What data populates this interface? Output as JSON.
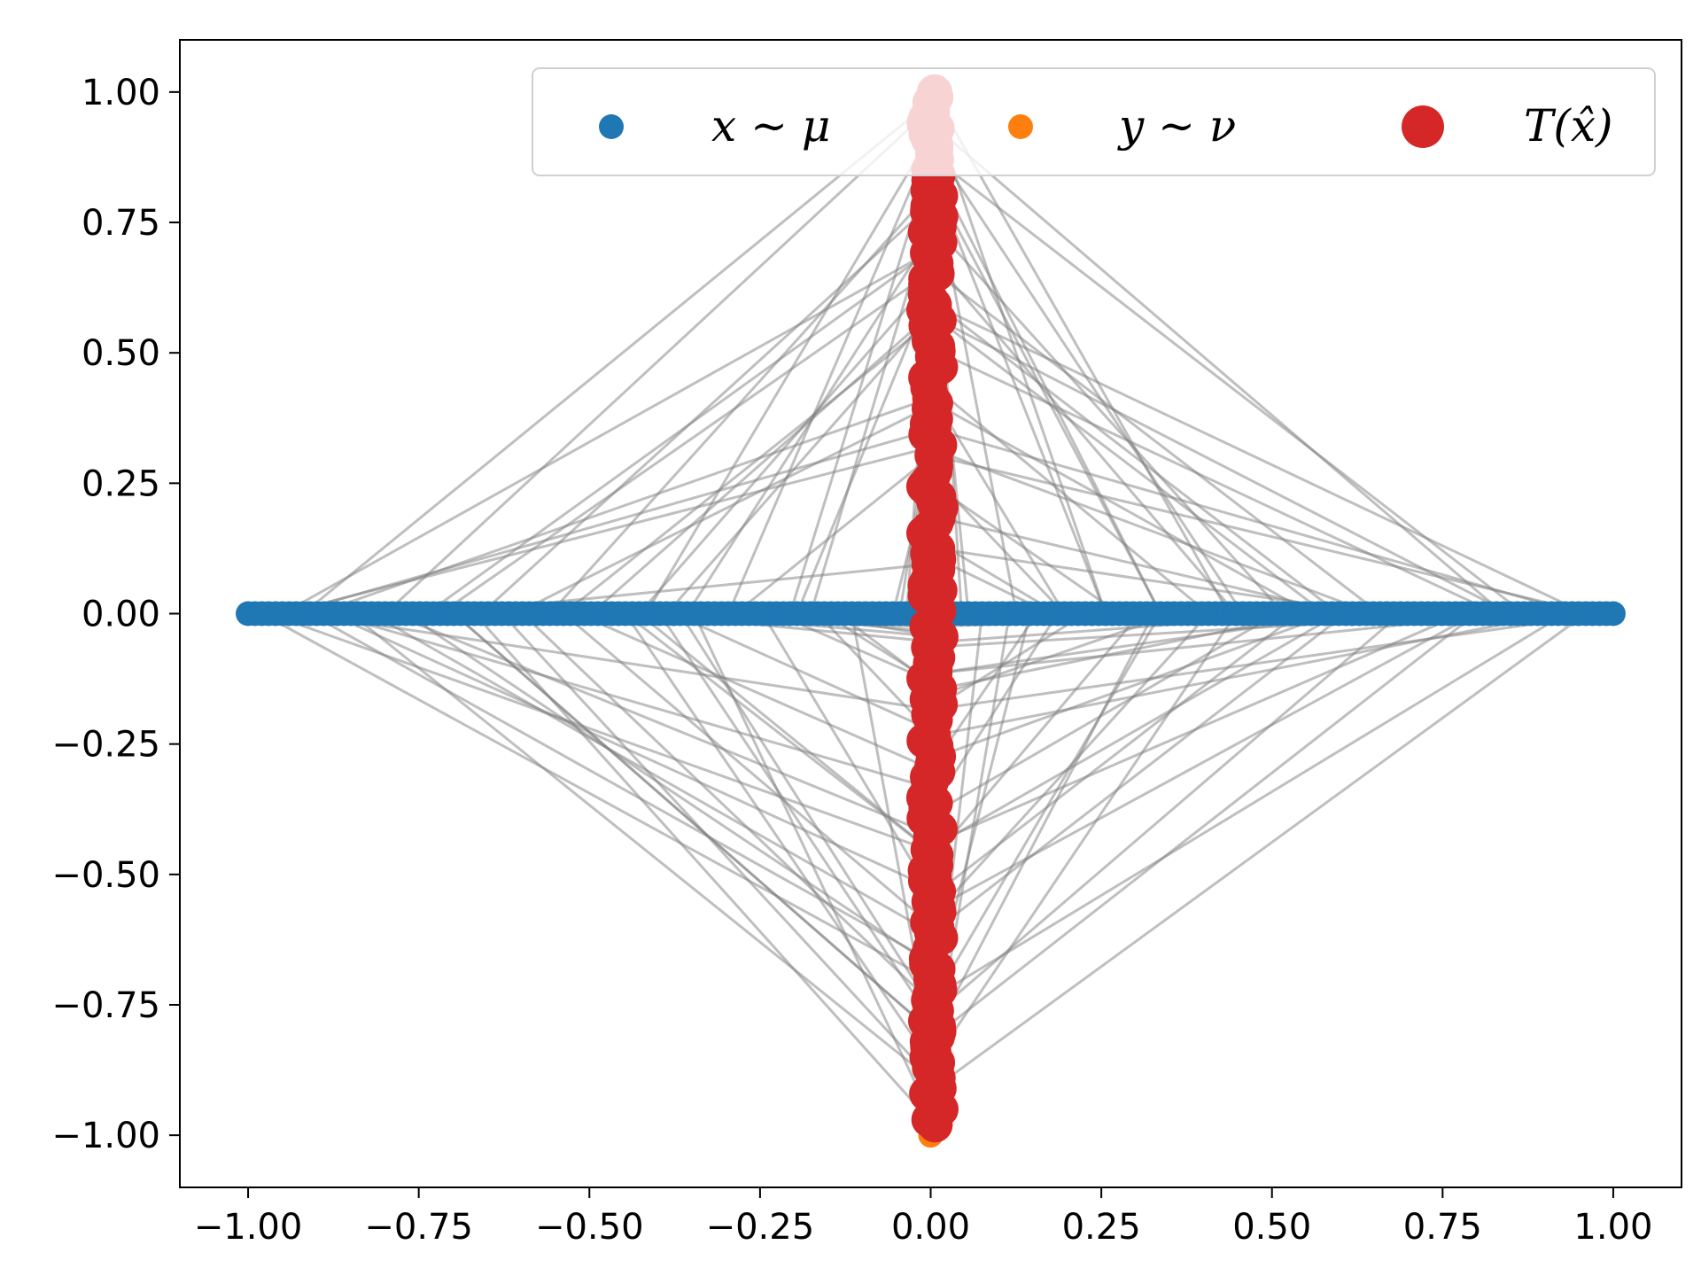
{
  "chart_data": {
    "type": "scatter",
    "xlim": [
      -1.1,
      1.1
    ],
    "ylim": [
      -1.1,
      1.1
    ],
    "x_ticks": [
      -1.0,
      -0.75,
      -0.5,
      -0.25,
      0.0,
      0.25,
      0.5,
      0.75,
      1.0
    ],
    "x_tick_labels": [
      "−1.00",
      "−0.75",
      "−0.50",
      "−0.25",
      "0.00",
      "0.25",
      "0.50",
      "0.75",
      "1.00"
    ],
    "y_ticks": [
      1.0,
      0.75,
      0.5,
      0.25,
      0.0,
      -0.25,
      -0.5,
      -0.75,
      -1.0
    ],
    "y_tick_labels": [
      "1.00",
      "0.75",
      "0.50",
      "0.25",
      "0.00",
      "−0.25",
      "−0.50",
      "−0.75",
      "−1.00"
    ],
    "grid": false,
    "legend_position": "top-right",
    "series": [
      {
        "name": "x ∼ μ",
        "color": "#1f77b4",
        "marker_size": "small",
        "points": {
          "description_axis": "horizontal",
          "x_range": [
            -1.0,
            1.0
          ],
          "y": 0.0,
          "count": 200
        }
      },
      {
        "name": "y ∼ ν",
        "color": "#ff7f0e",
        "marker_size": "small",
        "points": {
          "description_axis": "vertical",
          "x": 0.0,
          "y_range": [
            -1.0,
            1.0
          ],
          "count": 200
        }
      },
      {
        "name": "T(x̂)",
        "color": "#d62728",
        "marker_size": "large",
        "points": {
          "description_axis": "vertical",
          "x_range": [
            -0.01,
            0.015
          ],
          "y_range": [
            -0.98,
            1.0
          ],
          "count": 200
        }
      }
    ],
    "transport_lines": {
      "color": "#808080",
      "alpha": 0.5,
      "count": 130,
      "description": "each line connects a point x~mu on the horizontal segment to its image T(x) on the vertical segment"
    }
  }
}
